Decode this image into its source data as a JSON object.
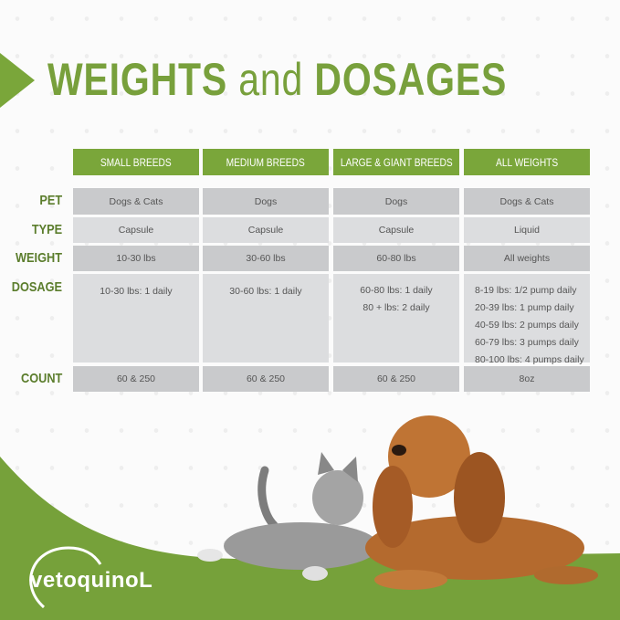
{
  "title": {
    "main": "WEIGHTS",
    "and": "and",
    "rest": "DOSAGES"
  },
  "columns": [
    "SMALL BREEDS",
    "MEDIUM BREEDS",
    "LARGE & GIANT BREEDS",
    "ALL WEIGHTS"
  ],
  "row_labels": {
    "pet": "PET",
    "type": "TYPE",
    "weight": "WEIGHT",
    "dosage": "DOSAGE",
    "count": "COUNT"
  },
  "rows": {
    "pet": [
      "Dogs & Cats",
      "Dogs",
      "Dogs",
      "Dogs & Cats"
    ],
    "type": [
      "Capsule",
      "Capsule",
      "Capsule",
      "Liquid"
    ],
    "weight": [
      "10-30 lbs",
      "30-60 lbs",
      "60-80 lbs",
      "All weights"
    ],
    "dosage": [
      [
        "10-30 lbs: 1 daily"
      ],
      [
        "30-60 lbs: 1 daily"
      ],
      [
        "60-80 lbs: 1 daily",
        "80 + lbs: 2 daily"
      ],
      [
        "8-19 lbs: 1/2 pump daily",
        "20-39 lbs: 1 pump daily",
        "40-59 lbs: 2 pumps daily",
        "60-79 lbs: 3 pumps daily",
        "80-100 lbs: 4 pumps daily"
      ]
    ],
    "count": [
      "60 & 250",
      "60 & 250",
      "60 & 250",
      "8oz"
    ]
  },
  "brand": {
    "logo": "vetoquinoL",
    "green": "#7aa63a"
  }
}
